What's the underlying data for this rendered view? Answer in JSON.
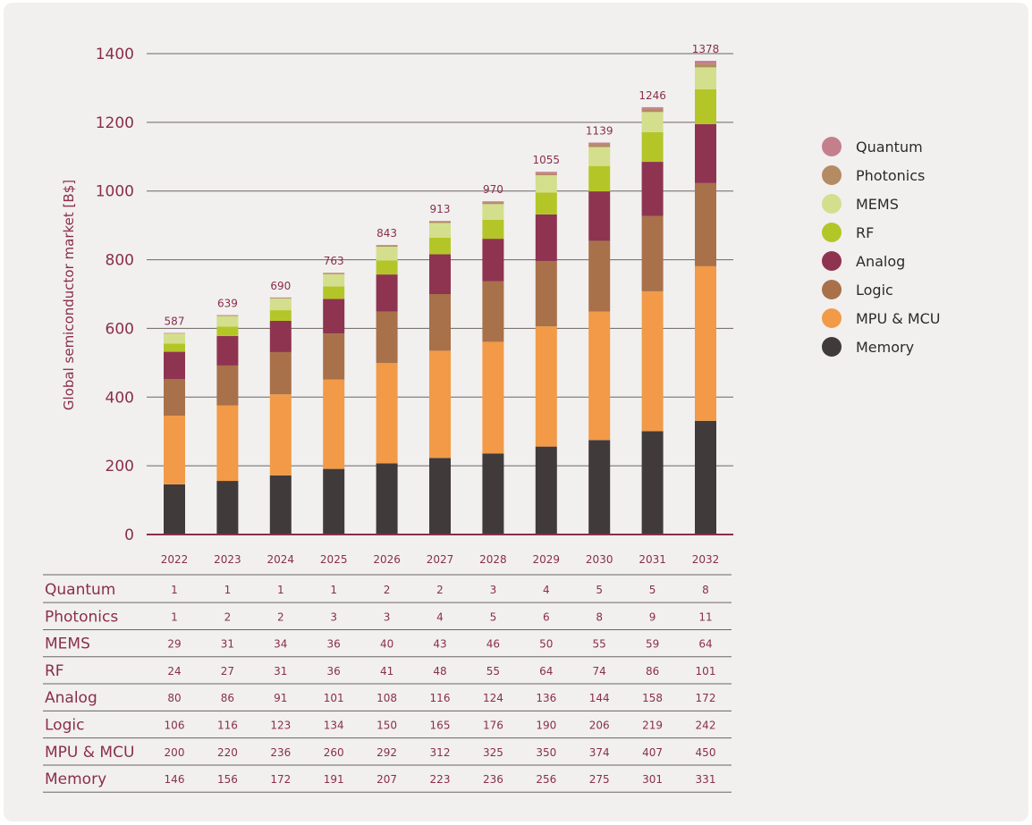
{
  "chart_data": {
    "type": "bar",
    "stacked": true,
    "ylabel": "Global semiconductor market [B$]",
    "xlabel": "",
    "ylim": [
      0,
      1400
    ],
    "yticks": [
      0,
      200,
      400,
      600,
      800,
      1000,
      1200,
      1400
    ],
    "grid": "horizontal",
    "legend_position": "right",
    "categories": [
      "2022",
      "2023",
      "2024",
      "2025",
      "2026",
      "2027",
      "2028",
      "2029",
      "2030",
      "2031",
      "2032"
    ],
    "totals": [
      587,
      639,
      690,
      763,
      843,
      913,
      970,
      1055,
      1139,
      1246,
      1378
    ],
    "series": [
      {
        "name": "Memory",
        "color": "#403a3b",
        "values": [
          146,
          156,
          172,
          191,
          207,
          223,
          236,
          256,
          275,
          301,
          331
        ]
      },
      {
        "name": "MPU & MCU",
        "color": "#f29a47",
        "values": [
          200,
          220,
          236,
          260,
          292,
          312,
          325,
          350,
          374,
          407,
          450
        ]
      },
      {
        "name": "Logic",
        "color": "#a8714a",
        "values": [
          106,
          116,
          123,
          134,
          150,
          165,
          176,
          190,
          206,
          219,
          242
        ]
      },
      {
        "name": "Analog",
        "color": "#8e3450",
        "values": [
          80,
          86,
          91,
          101,
          108,
          116,
          124,
          136,
          144,
          158,
          172
        ]
      },
      {
        "name": "RF",
        "color": "#b4c627",
        "values": [
          24,
          27,
          31,
          36,
          41,
          48,
          55,
          64,
          74,
          86,
          101
        ]
      },
      {
        "name": "MEMS",
        "color": "#d3df8c",
        "values": [
          29,
          31,
          34,
          36,
          40,
          43,
          46,
          50,
          55,
          59,
          64
        ]
      },
      {
        "name": "Photonics",
        "color": "#b58b63",
        "values": [
          1,
          2,
          2,
          3,
          3,
          4,
          5,
          6,
          8,
          9,
          11
        ]
      },
      {
        "name": "Quantum",
        "color": "#c47f8d",
        "values": [
          1,
          1,
          1,
          1,
          2,
          2,
          3,
          4,
          5,
          5,
          8
        ]
      }
    ],
    "table_row_order": [
      "Quantum",
      "Photonics",
      "MEMS",
      "RF",
      "Analog",
      "Logic",
      "MPU & MCU",
      "Memory"
    ],
    "legend_order": [
      "Quantum",
      "Photonics",
      "MEMS",
      "RF",
      "Analog",
      "Logic",
      "MPU & MCU",
      "Memory"
    ]
  },
  "colors": {
    "label_text": "#8a2e4a",
    "axis_line": "#8a2e4a",
    "grid_line": "#6b6566",
    "legend_text": "#2e2a2b",
    "card_background": "#f1f0ef"
  }
}
